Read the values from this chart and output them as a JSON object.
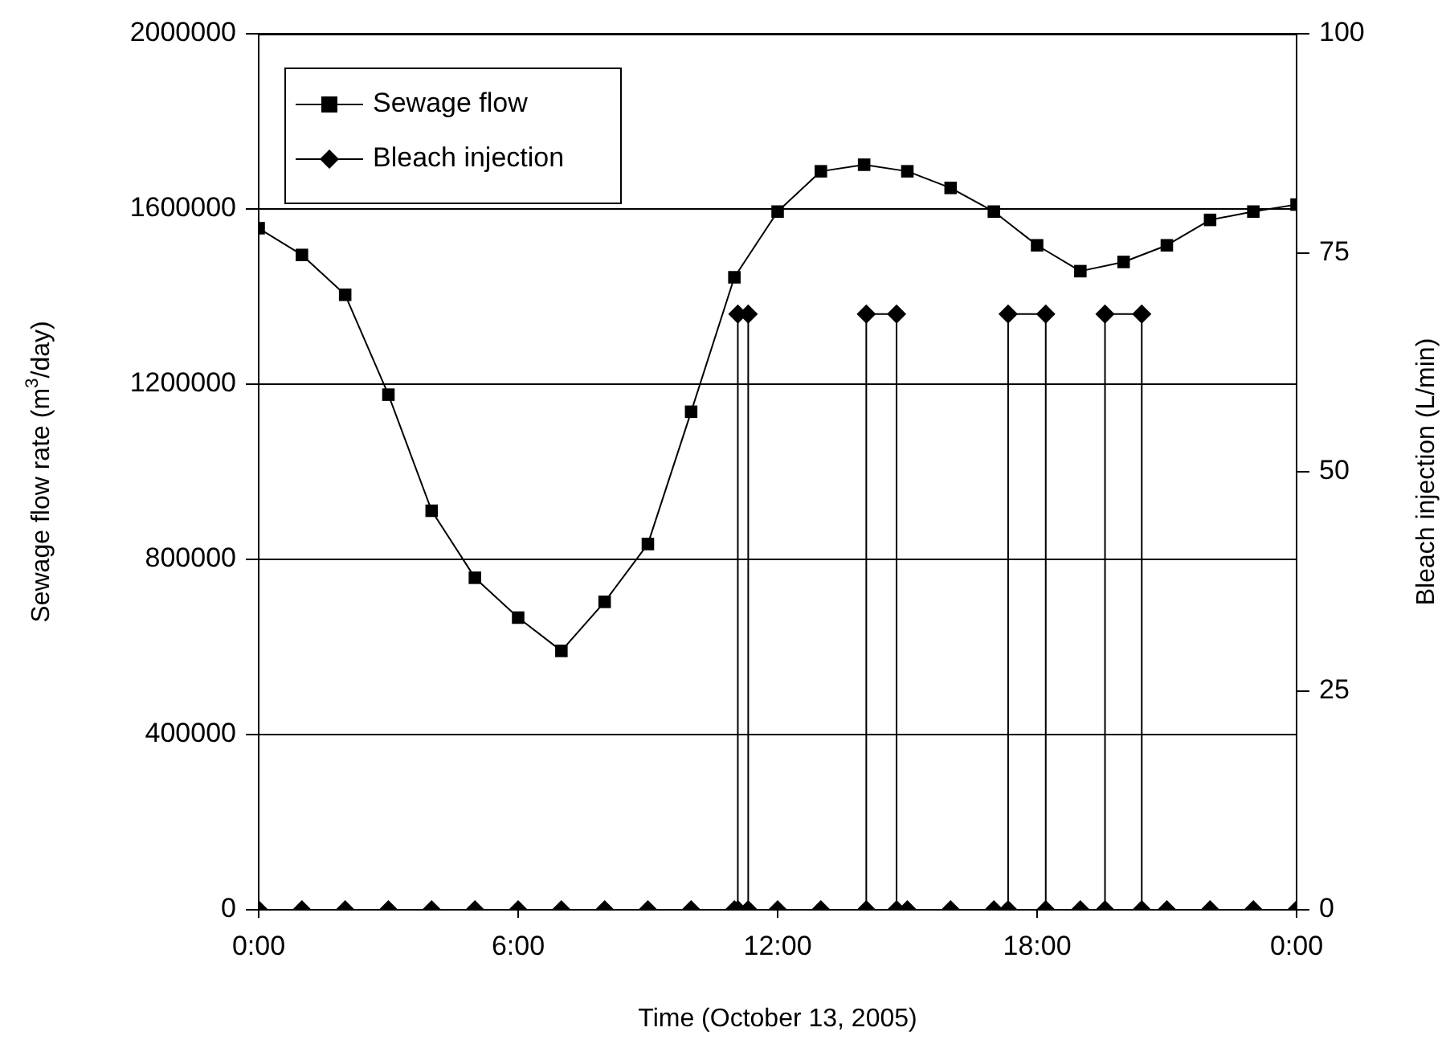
{
  "chart_data": {
    "type": "line",
    "xlabel": "Time (October 13, 2005)",
    "ylabel": "Sewage flow rate (m$^{3}$/day)",
    "y2label": "Bleach injection (L/min)",
    "xlim": [
      0,
      24
    ],
    "xticks": [
      {
        "value": 0,
        "label": "0:00"
      },
      {
        "value": 6,
        "label": "6:00"
      },
      {
        "value": 12,
        "label": "12:00"
      },
      {
        "value": 18,
        "label": "18:00"
      },
      {
        "value": 24,
        "label": "0:00"
      }
    ],
    "ylim": [
      0,
      2000000
    ],
    "yticks": [
      0,
      400000,
      800000,
      1200000,
      1600000,
      2000000
    ],
    "y2lim": [
      0,
      100
    ],
    "y2ticks": [
      0,
      25,
      50,
      75,
      100
    ],
    "grid": "y",
    "legend": "top left",
    "line_style": "solid",
    "series": [
      {
        "name": "Sewage flow",
        "color": "#000000",
        "marker": "square",
        "x": [
          0,
          1,
          2,
          3,
          4,
          5,
          6,
          7,
          8,
          9,
          10,
          11,
          12,
          13,
          14,
          15,
          16,
          17,
          18,
          19,
          20,
          21,
          22,
          23,
          24
        ],
        "values": [
          1556000,
          1495000,
          1404000,
          1176000,
          911000,
          758000,
          667000,
          591000,
          703000,
          835000,
          1137000,
          1444000,
          1594000,
          1686000,
          1701000,
          1686000,
          1648000,
          1594000,
          1517000,
          1458000,
          1479000,
          1517000,
          1575000,
          1594000,
          1610000
        ]
      },
      {
        "name": "Bleach injection",
        "color": "#000000",
        "marker": "diamond",
        "axis": "y2",
        "x": [
          0,
          1,
          2,
          3,
          4,
          5,
          6,
          7,
          8,
          9,
          10,
          11,
          11.08,
          11.08,
          11.32,
          11.32,
          12,
          13,
          14.05,
          14.05,
          14.75,
          14.75,
          15,
          16,
          17,
          17.33,
          17.33,
          18.2,
          18.2,
          19,
          19.57,
          19.57,
          20.42,
          20.42,
          21,
          22,
          23,
          24
        ],
        "values": [
          0,
          0,
          0,
          0,
          0,
          0,
          0,
          0,
          0,
          0,
          0,
          0,
          0,
          68,
          68,
          0,
          0,
          0,
          0,
          68,
          68,
          0,
          0,
          0,
          0,
          0,
          68,
          68,
          0,
          0,
          0,
          68,
          68,
          0,
          0,
          0,
          0,
          0
        ]
      }
    ]
  }
}
